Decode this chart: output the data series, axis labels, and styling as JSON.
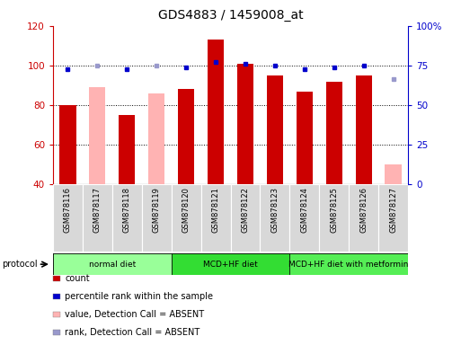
{
  "title": "GDS4883 / 1459008_at",
  "samples": [
    "GSM878116",
    "GSM878117",
    "GSM878118",
    "GSM878119",
    "GSM878120",
    "GSM878121",
    "GSM878122",
    "GSM878123",
    "GSM878124",
    "GSM878125",
    "GSM878126",
    "GSM878127"
  ],
  "count_values": [
    80,
    null,
    75,
    null,
    88,
    113,
    101,
    95,
    87,
    92,
    95,
    null
  ],
  "count_absent_values": [
    null,
    89,
    null,
    86,
    null,
    null,
    null,
    null,
    null,
    null,
    null,
    50
  ],
  "percentile_values": [
    98,
    null,
    98,
    null,
    99,
    102,
    101,
    100,
    98,
    99,
    100,
    null
  ],
  "percentile_absent_values": [
    null,
    100,
    null,
    100,
    null,
    null,
    null,
    null,
    null,
    null,
    null,
    93
  ],
  "ylim_left": [
    40,
    120
  ],
  "ylim_right": [
    0,
    100
  ],
  "left_ticks": [
    40,
    60,
    80,
    100,
    120
  ],
  "right_ticks": [
    0,
    25,
    50,
    75,
    100
  ],
  "bar_color_present": "#cc0000",
  "bar_color_absent": "#ffb3b3",
  "dot_color_present": "#0000cc",
  "dot_color_absent": "#9999cc",
  "protocol_groups": [
    {
      "label": "normal diet",
      "start": 0,
      "end": 3,
      "color": "#99ff99"
    },
    {
      "label": "MCD+HF diet",
      "start": 4,
      "end": 7,
      "color": "#33dd33"
    },
    {
      "label": "MCD+HF diet with metformin",
      "start": 8,
      "end": 11,
      "color": "#55ee55"
    }
  ],
  "legend_items": [
    {
      "color": "#cc0000",
      "label": "count"
    },
    {
      "color": "#0000cc",
      "label": "percentile rank within the sample"
    },
    {
      "color": "#ffb3b3",
      "label": "value, Detection Call = ABSENT"
    },
    {
      "color": "#9999cc",
      "label": "rank, Detection Call = ABSENT"
    }
  ],
  "bar_width": 0.55,
  "title_fontsize": 10
}
